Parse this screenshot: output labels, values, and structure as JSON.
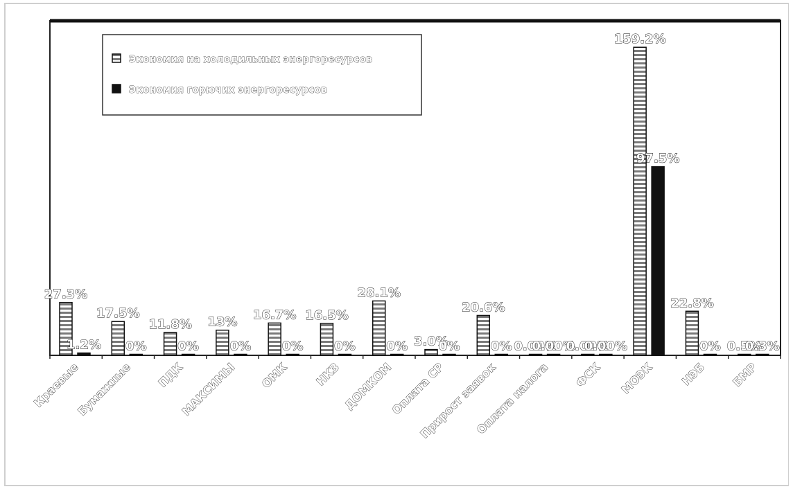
{
  "chart_data": {
    "type": "bar",
    "categories": [
      "Краевые",
      "Бумажные",
      "ПДК",
      "МАКСИМЫ",
      "ОМК",
      "НКЗ",
      "ДОМКОМ",
      "Оплата СР",
      "Прирост заявок",
      "Оплата налога",
      "ФСК",
      "МОЭК",
      "НЭБ",
      "БМР"
    ],
    "series": [
      {
        "name": "Экономия на холодильных энергоресурсов",
        "color": "#9a9a9a",
        "values": [
          27.3,
          17.5,
          11.8,
          13,
          16.7,
          16.5,
          28.1,
          3,
          20.6,
          0,
          0,
          159.2,
          22.8,
          0.5
        ],
        "labels": [
          "27.3%",
          "17.5%",
          "11.8%",
          "13%",
          "16.7%",
          "16.5%",
          "28.1%",
          "3.0%",
          "20.6%",
          "0.00%",
          "0.00%",
          "159.2%",
          "22.8%",
          "0.5%"
        ]
      },
      {
        "name": "Экономия горючих энергоресурсов",
        "color": "#111111",
        "values": [
          1.2,
          0,
          0,
          0,
          0,
          0,
          0,
          0,
          0,
          0,
          0,
          97.5,
          0,
          0.3
        ],
        "labels": [
          "1.2%",
          "0%",
          "0%",
          "0%",
          "0%",
          "0%",
          "0%",
          "0%",
          "0%",
          "0.00%",
          "0.00%",
          "97.5%",
          "0%",
          "0.3%"
        ]
      }
    ],
    "ylim": [
      0,
      160
    ],
    "grid": false,
    "legend_position": "top-left",
    "title": "",
    "xlabel": "",
    "ylabel": ""
  }
}
